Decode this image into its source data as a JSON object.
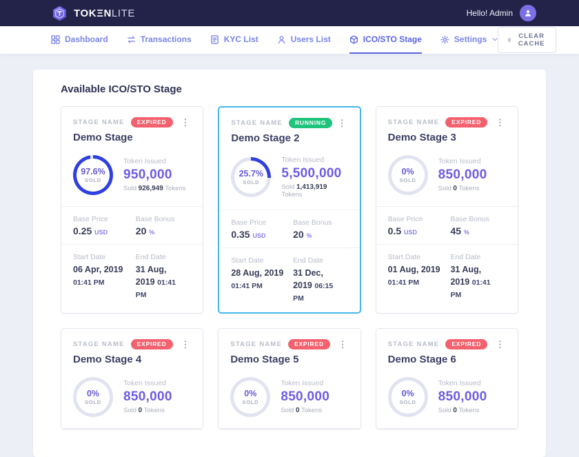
{
  "topbar": {
    "brand_bold": "TOKΞN",
    "brand_light": "LITE",
    "greeting": "Hello! Admin"
  },
  "nav": {
    "items": [
      {
        "id": "dashboard",
        "label": "Dashboard",
        "icon": "dashboard-icon",
        "active": false
      },
      {
        "id": "transactions",
        "label": "Transactions",
        "icon": "transactions-icon",
        "active": false
      },
      {
        "id": "kyc",
        "label": "KYC List",
        "icon": "kyc-list-icon",
        "active": false
      },
      {
        "id": "users",
        "label": "Users List",
        "icon": "users-list-icon",
        "active": false
      },
      {
        "id": "stage",
        "label": "ICO/STO Stage",
        "icon": "ico-sto-stage-icon",
        "active": true
      },
      {
        "id": "settings",
        "label": "Settings",
        "icon": "settings-gear-icon",
        "active": false,
        "dropdown": true
      }
    ],
    "clear_cache_label": "CLEAR CACHE"
  },
  "page": {
    "heading": "Available ICO/STO Stage"
  },
  "labels": {
    "stage_name": "STAGE NAME",
    "token_issued": "Token Issued",
    "sold_caps": "SOLD",
    "sold_prefix": "Sold",
    "tokens_suffix": "Tokens",
    "base_price": "Base Price",
    "base_bonus": "Base Bonus",
    "start_date": "Start Date",
    "end_date": "End Date",
    "usd": "USD",
    "percent": "%"
  },
  "colors": {
    "ring_fill": "#3040df",
    "ring_track": "#e1e4f0",
    "expired": "#f2616d",
    "running": "#1fc47c",
    "number_purple": "#6d5ce0",
    "highlight_border": "#45b7e9"
  },
  "stages": [
    {
      "name": "Demo Stage",
      "status": "EXPIRED",
      "status_key": "expired",
      "percent": 97.6,
      "percent_label": "97.6%",
      "token_issued": "950,000",
      "sold_tokens": "926,949",
      "base_price": "0.25",
      "base_bonus": "20",
      "start_date": "06 Apr, 2019",
      "start_time": "01:41 PM",
      "end_date": "31 Aug, 2019",
      "end_time": "01:41 PM",
      "highlight": false
    },
    {
      "name": "Demo Stage 2",
      "status": "RUNNING",
      "status_key": "running",
      "percent": 25.7,
      "percent_label": "25.7%",
      "token_issued": "5,500,000",
      "sold_tokens": "1,413,919",
      "base_price": "0.35",
      "base_bonus": "20",
      "start_date": "28 Aug, 2019",
      "start_time": "01:41 PM",
      "end_date": "31 Dec, 2019",
      "end_time": "06:15 PM",
      "highlight": true
    },
    {
      "name": "Demo Stage 3",
      "status": "EXPIRED",
      "status_key": "expired",
      "percent": 0,
      "percent_label": "0%",
      "token_issued": "850,000",
      "sold_tokens": "0",
      "base_price": "0.5",
      "base_bonus": "45",
      "start_date": "01 Aug, 2019",
      "start_time": "01:41 PM",
      "end_date": "31 Aug, 2019",
      "end_time": "01:41 PM",
      "highlight": false
    },
    {
      "name": "Demo Stage 4",
      "status": "EXPIRED",
      "status_key": "expired",
      "percent": 0,
      "percent_label": "0%",
      "token_issued": "850,000",
      "sold_tokens": "0",
      "highlight": false
    },
    {
      "name": "Demo Stage 5",
      "status": "EXPIRED",
      "status_key": "expired",
      "percent": 0,
      "percent_label": "0%",
      "token_issued": "850,000",
      "sold_tokens": "0",
      "highlight": false
    },
    {
      "name": "Demo Stage 6",
      "status": "EXPIRED",
      "status_key": "expired",
      "percent": 0,
      "percent_label": "0%",
      "token_issued": "850,000",
      "sold_tokens": "0",
      "highlight": false
    }
  ]
}
